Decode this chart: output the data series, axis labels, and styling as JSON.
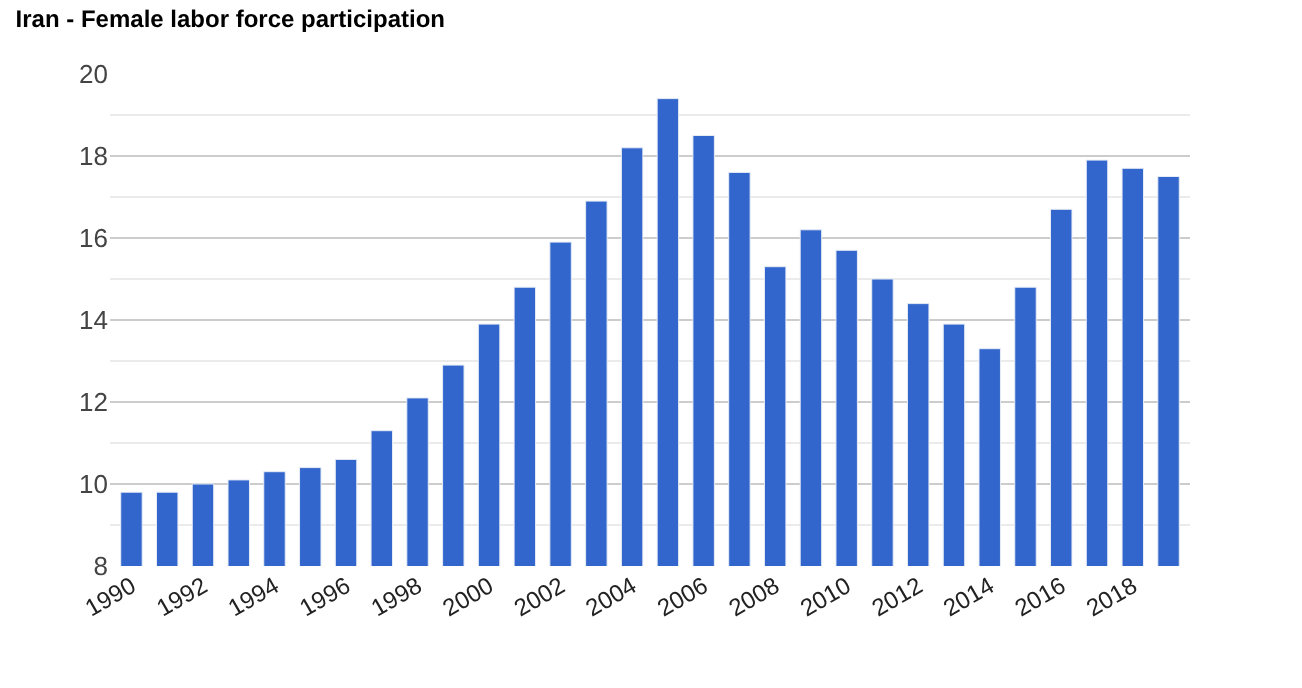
{
  "chart_data": {
    "type": "bar",
    "title": "Iran - Female labor force participation",
    "categories": [
      "1990",
      null,
      "1992",
      null,
      "1994",
      null,
      "1996",
      null,
      "1998",
      null,
      "2000",
      null,
      "2002",
      null,
      "2004",
      null,
      "2006",
      null,
      "2008",
      null,
      "2010",
      null,
      "2012",
      null,
      "2014",
      null,
      "2016",
      null,
      "2018",
      null
    ],
    "values": [
      9.8,
      9.8,
      10.0,
      10.1,
      10.3,
      10.4,
      10.6,
      11.3,
      12.1,
      12.9,
      13.9,
      14.8,
      15.9,
      16.9,
      18.2,
      19.4,
      18.5,
      17.6,
      15.3,
      16.2,
      15.7,
      15.0,
      14.4,
      13.9,
      13.3,
      14.8,
      16.7,
      17.9,
      17.7,
      17.5
    ],
    "color": "#3366cc",
    "ylim": [
      8,
      20
    ],
    "yticks": [
      8,
      {
        "value": 9,
        "label": null
      },
      10,
      {
        "value": 11,
        "label": null
      },
      12,
      {
        "value": 13,
        "label": null
      },
      14,
      {
        "value": 15,
        "label": null
      },
      16,
      {
        "value": 17,
        "label": null
      },
      18,
      {
        "value": 19,
        "label": null
      },
      20
    ],
    "grid": "y"
  }
}
